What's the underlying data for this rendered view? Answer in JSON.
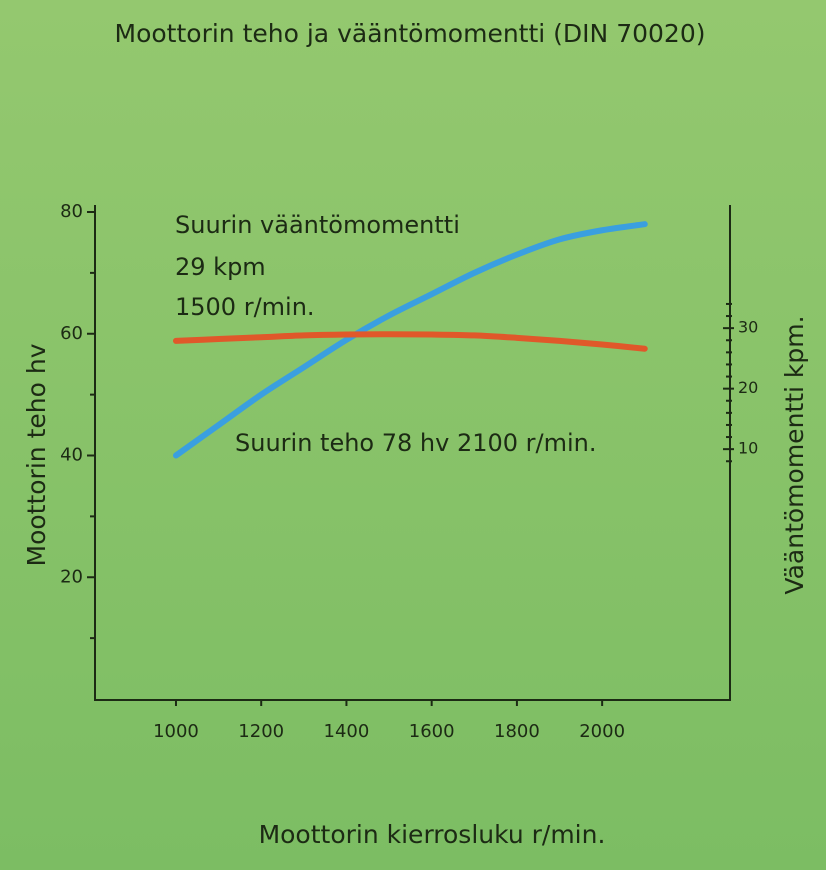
{
  "chart_data": {
    "type": "line",
    "title": "Moottorin teho ja vääntömomentti (DIN 70020)",
    "xlabel": "Moottorin kierrosluku r/min.",
    "ylabel": "Moottorin teho hv",
    "y2label": "Vääntömomentti kpm.",
    "annotations": [
      "Suurin vääntömomentti",
      "29 kpm",
      "1500 r/min.",
      "Suurin teho 78 hv 2100 r/min."
    ],
    "x": [
      1000,
      1100,
      1200,
      1300,
      1400,
      1500,
      1600,
      1700,
      1800,
      1900,
      2000,
      2100
    ],
    "series": [
      {
        "color": "#3a9fe0",
        "values": [
          40,
          45,
          50,
          54.5,
          59,
          63,
          66.5,
          70,
          73,
          75.5,
          77,
          78
        ]
      },
      {
        "color": "#e0582a",
        "axis": "y2",
        "values": [
          27.9,
          28.2,
          28.5,
          28.8,
          28.95,
          29,
          28.95,
          28.8,
          28.4,
          27.9,
          27.3,
          26.6
        ]
      }
    ],
    "xlim": [
      810,
      2300
    ],
    "xticks": [
      1000,
      1200,
      1400,
      1600,
      1800,
      2000
    ],
    "ylim": [
      0,
      80
    ],
    "yticks": [
      20,
      40,
      60,
      80
    ],
    "yminorticks": [
      10,
      30,
      50,
      70
    ],
    "y2lim": [
      -31.3,
      49.2
    ],
    "y2ticks": [
      10,
      20,
      30
    ],
    "y2minorticks": [
      8,
      12,
      14,
      16,
      18,
      22,
      24,
      26,
      28,
      32,
      34
    ]
  }
}
